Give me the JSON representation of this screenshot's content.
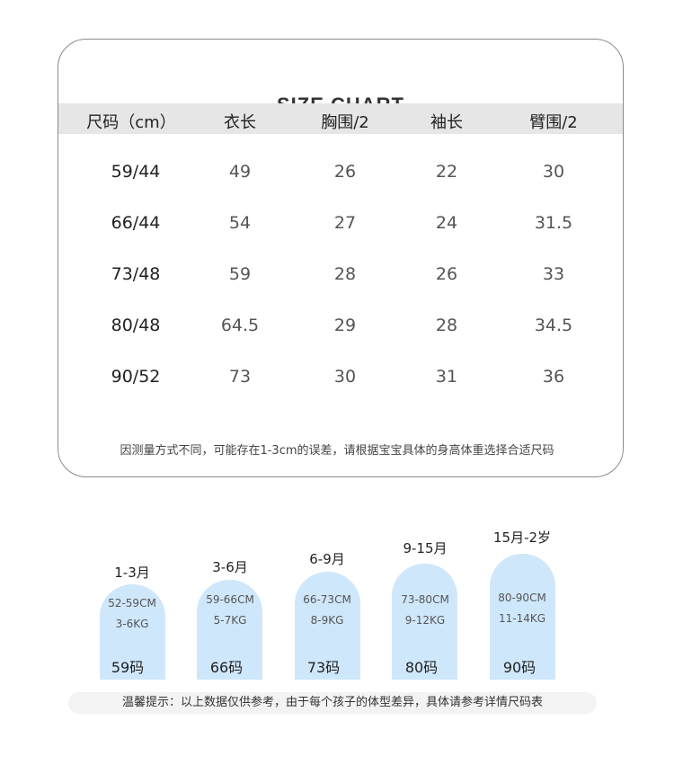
{
  "size_chart": {
    "title": "SIZE CHART",
    "headers": [
      "尺码（cm）",
      "衣长",
      "胸围/2",
      "袖长",
      "臂围/2"
    ],
    "rows": [
      [
        "59/44",
        "49",
        "26",
        "22",
        "30"
      ],
      [
        "66/44",
        "54",
        "27",
        "24",
        "31.5"
      ],
      [
        "73/48",
        "59",
        "28",
        "26",
        "33"
      ],
      [
        "80/48",
        "64.5",
        "29",
        "28",
        "34.5"
      ],
      [
        "90/52",
        "73",
        "30",
        "31",
        "36"
      ]
    ],
    "note": "因测量方式不同，可能存在1-3cm的误差，请根据宝宝具体的身高体重选择合适尺码"
  },
  "size_guide": [
    {
      "age": "1-3月",
      "height": "52-59CM",
      "weight": "3-6KG",
      "code": "59码"
    },
    {
      "age": "3-6月",
      "height": "59-66CM",
      "weight": "5-7KG",
      "code": "66码"
    },
    {
      "age": "6-9月",
      "height": "66-73CM",
      "weight": "8-9KG",
      "code": "73码"
    },
    {
      "age": "9-15月",
      "height": "73-80CM",
      "weight": "9-12KG",
      "code": "80码"
    },
    {
      "age": "15月-2岁",
      "height": "80-90CM",
      "weight": "11-14KG",
      "code": "90码"
    }
  ],
  "tip": "温馨提示：以上数据仅供参考，由于每个孩子的体型差异，具体请参考详情尺码表",
  "colors": {
    "bar": "#cfe7fb",
    "header_band": "#e6e6e6",
    "border": "#8a8a8a"
  }
}
